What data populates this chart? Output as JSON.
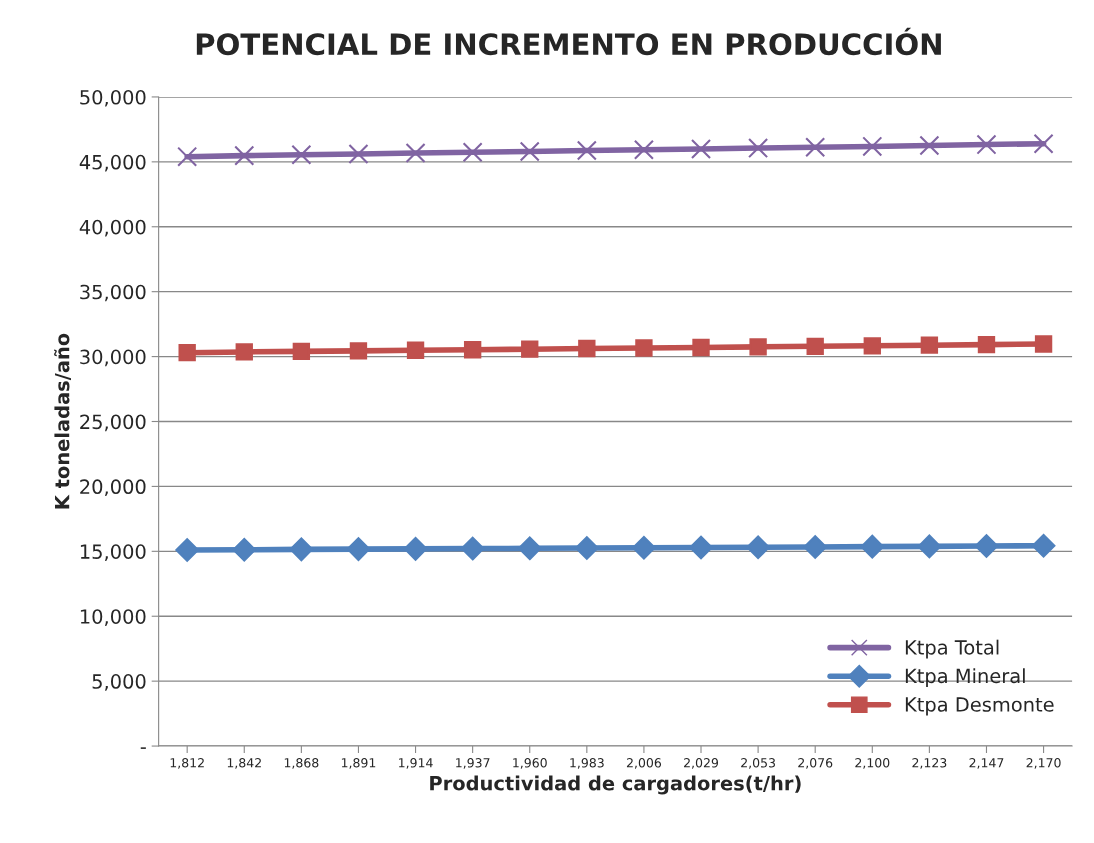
{
  "chart_data": {
    "type": "line",
    "title": "POTENCIAL DE INCREMENTO EN PRODUCCIÓN",
    "xlabel": "Productividad de cargadores(t/hr)",
    "ylabel": "K toneladas/año",
    "categories": [
      "1,812",
      "1,842",
      "1,868",
      "1,891",
      "1,914",
      "1,937",
      "1,960",
      "1,983",
      "2,006",
      "2,029",
      "2,053",
      "2,076",
      "2,100",
      "2,123",
      "2,147",
      "2,170"
    ],
    "series": [
      {
        "name": "Ktpa Total",
        "color": "#8064a2",
        "marker": "cross",
        "values": [
          45400,
          45480,
          45550,
          45610,
          45680,
          45740,
          45800,
          45870,
          45930,
          45990,
          46060,
          46130,
          46190,
          46260,
          46330,
          46400
        ]
      },
      {
        "name": "Ktpa Mineral",
        "color": "#4f81bd",
        "marker": "diamond",
        "values": [
          15100,
          15120,
          15150,
          15170,
          15190,
          15210,
          15230,
          15250,
          15270,
          15290,
          15310,
          15340,
          15360,
          15380,
          15410,
          15430
        ]
      },
      {
        "name": "Ktpa Desmonte",
        "color": "#c0504d",
        "marker": "square",
        "values": [
          30300,
          30360,
          30400,
          30440,
          30490,
          30530,
          30570,
          30620,
          30660,
          30700,
          30750,
          30790,
          30830,
          30880,
          30920,
          30970
        ]
      }
    ],
    "ylim": [
      0,
      50000
    ],
    "yticks": [
      {
        "value": 0,
        "label": "-"
      },
      {
        "value": 5000,
        "label": "5,000"
      },
      {
        "value": 10000,
        "label": "10,000"
      },
      {
        "value": 15000,
        "label": "15,000"
      },
      {
        "value": 20000,
        "label": "20,000"
      },
      {
        "value": 25000,
        "label": "25,000"
      },
      {
        "value": 30000,
        "label": "30,000"
      },
      {
        "value": 35000,
        "label": "35,000"
      },
      {
        "value": 40000,
        "label": "40,000"
      },
      {
        "value": 45000,
        "label": "45,000"
      },
      {
        "value": 50000,
        "label": "50,000"
      }
    ],
    "grid": "y",
    "legend": "bottom right",
    "line_style": "solid"
  }
}
